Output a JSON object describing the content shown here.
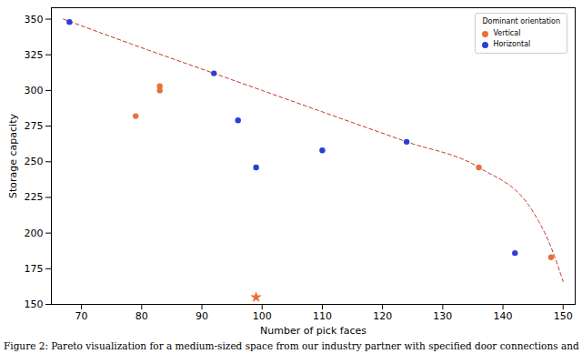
{
  "chart_data": {
    "type": "scatter",
    "x_label": "Number of pick faces",
    "y_label": "Storage capacity",
    "caption": "Figure 2: Pareto visualization for a medium-sized space from our industry partner with specified door connections and",
    "xlim": [
      65,
      152
    ],
    "xticks": [
      70,
      80,
      90,
      100,
      110,
      120,
      130,
      140,
      150
    ],
    "ylim": [
      150,
      358
    ],
    "yticks": [
      150,
      175,
      200,
      225,
      250,
      275,
      300,
      325,
      350
    ],
    "grid": false,
    "legend": "upper right",
    "legend_title": "Dominant orientation",
    "series": [
      {
        "name": "Vertical",
        "color": "#e8703a",
        "marker": "circle",
        "x": [
          79,
          83,
          83,
          136,
          148
        ],
        "values": [
          282,
          303,
          300,
          246,
          183
        ]
      },
      {
        "name": "Horizontal",
        "color": "#2a3fd8",
        "marker": "circle",
        "x": [
          68,
          92,
          96,
          99,
          110,
          124,
          142
        ],
        "values": [
          348,
          312,
          279,
          246,
          258,
          264,
          186
        ]
      }
    ],
    "highlight": {
      "color": "#e8703a",
      "marker": "star",
      "x": [
        99
      ],
      "values": [
        155
      ]
    },
    "pareto_front": {
      "color": "#c0392b",
      "line_style": "dashed",
      "x": [
        67,
        78,
        92,
        100,
        124,
        136,
        145,
        148,
        150
      ],
      "values": [
        350,
        333,
        312,
        300,
        264,
        246,
        215,
        190,
        166
      ]
    }
  }
}
